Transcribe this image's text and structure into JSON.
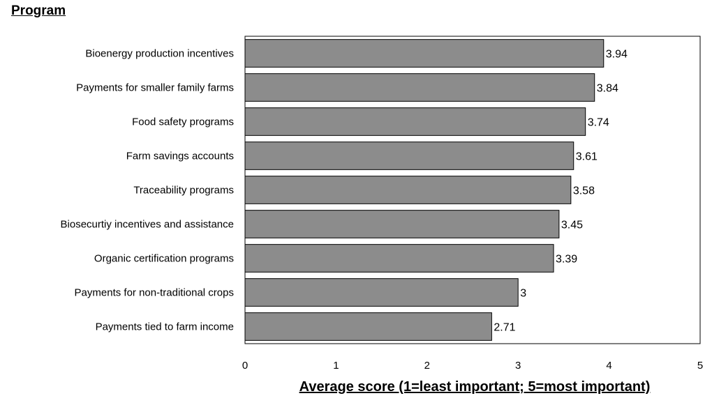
{
  "chart_data": {
    "type": "bar",
    "orientation": "horizontal",
    "ylabel": "Program",
    "xlabel": "Average score (1=least important; 5=most important)",
    "categories": [
      "Bioenergy production incentives",
      "Payments for smaller family farms",
      "Food safety programs",
      "Farm savings accounts",
      "Traceability programs",
      "Biosecurtiy incentives and assistance",
      "Organic certification programs",
      "Payments for non-traditional crops",
      "Payments tied to farm income"
    ],
    "values": [
      3.94,
      3.84,
      3.74,
      3.61,
      3.58,
      3.45,
      3.39,
      3,
      2.71
    ],
    "value_labels": [
      "3.94",
      "3.84",
      "3.74",
      "3.61",
      "3.58",
      "3.45",
      "3.39",
      "3",
      "2.71"
    ],
    "xlim": [
      0,
      5
    ],
    "x_ticks": [
      0,
      1,
      2,
      3,
      4,
      5
    ],
    "grid": false,
    "bar_color": "#8c8c8c",
    "bar_edge_color": "#000000"
  }
}
